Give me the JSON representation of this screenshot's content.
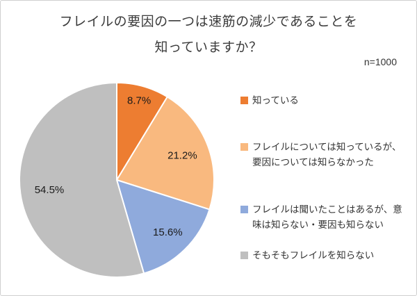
{
  "title_line1": "フレイルの要因の一つは速筋の減少であることを",
  "title_line2": "知っていますか？",
  "sample_size_label": "n=1000",
  "chart_data": {
    "type": "pie",
    "title": "フレイルの要因の一つは速筋の減少であることを知っていますか？",
    "n": 1000,
    "start_angle_deg": 0,
    "direction": "clockwise",
    "legend_position": "right",
    "slices": [
      {
        "label": "知っている",
        "value": 8.7,
        "display": "8.7%",
        "color": "#ED7D31"
      },
      {
        "label": "フレイルについては知っているが、要因については知らなかった",
        "value": 21.2,
        "display": "21.2%",
        "color": "#F9B97F"
      },
      {
        "label": "フレイルは聞いたことはあるが、意味は知らない・要因も知らない",
        "value": 15.6,
        "display": "15.6%",
        "color": "#8FAADC"
      },
      {
        "label": "そもそもフレイルを知らない",
        "value": 54.5,
        "display": "54.5%",
        "color": "#BFBFBF"
      }
    ]
  }
}
